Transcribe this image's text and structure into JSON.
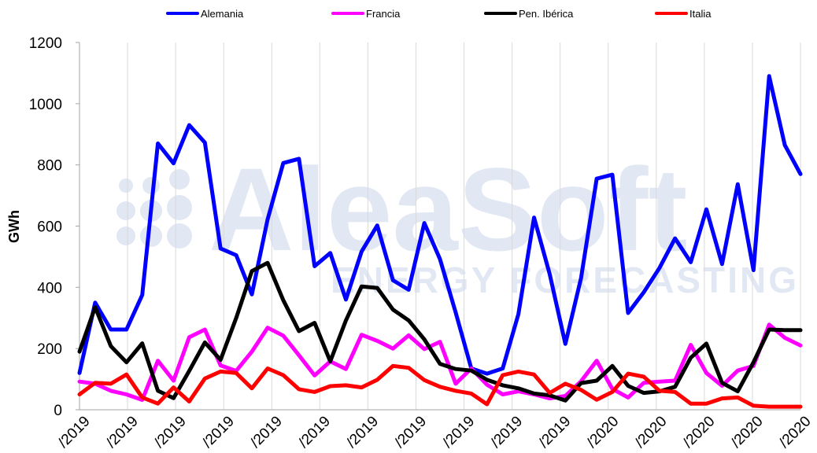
{
  "watermark": {
    "brand": "AleaSoft",
    "tagline": "ENERGY FORECASTING"
  },
  "chart_data": {
    "type": "line",
    "title": "",
    "xlabel": "",
    "ylabel": "GWh",
    "ylim": [
      0,
      1200
    ],
    "yticks": [
      0,
      200,
      400,
      600,
      800,
      1000,
      1200
    ],
    "xtick_labels": [
      "/2019",
      "/2019",
      "/2019",
      "/2019",
      "/2019",
      "/2019",
      "/2019",
      "/2019",
      "/2019",
      "/2019",
      "/2019",
      "/2020",
      "/2020",
      "/2020",
      "/2020",
      "/2020"
    ],
    "grid": "vertical",
    "legend_position": "top",
    "series": [
      {
        "name": "Alemania",
        "color": "#0000ff",
        "values": [
          120,
          350,
          262,
          262,
          375,
          870,
          805,
          930,
          873,
          527,
          505,
          377,
          622,
          806,
          820,
          469,
          512,
          360,
          517,
          602,
          423,
          392,
          610,
          492,
          318,
          135,
          118,
          135,
          312,
          628,
          443,
          215,
          430,
          755,
          768,
          316,
          384,
          463,
          560,
          482,
          655,
          476,
          737,
          456,
          1090,
          865,
          770
        ]
      },
      {
        "name": "Francia",
        "color": "#ff00ff",
        "values": [
          92,
          85,
          62,
          50,
          32,
          160,
          95,
          237,
          262,
          145,
          127,
          190,
          268,
          242,
          178,
          112,
          158,
          133,
          245,
          225,
          200,
          243,
          198,
          222,
          85,
          135,
          82,
          50,
          60,
          50,
          37,
          45,
          93,
          160,
          68,
          40,
          88,
          92,
          95,
          212,
          120,
          78,
          128,
          143,
          278,
          235,
          210
        ]
      },
      {
        "name": "Pen. Ibérica",
        "color": "#000000",
        "values": [
          190,
          335,
          208,
          155,
          217,
          62,
          38,
          127,
          220,
          163,
          300,
          453,
          480,
          358,
          257,
          284,
          158,
          292,
          403,
          398,
          327,
          292,
          230,
          150,
          133,
          128,
          98,
          80,
          70,
          53,
          47,
          30,
          87,
          95,
          143,
          78,
          55,
          60,
          75,
          170,
          216,
          88,
          60,
          155,
          262,
          260,
          260
        ]
      },
      {
        "name": "Italia",
        "color": "#ff0000",
        "values": [
          50,
          88,
          85,
          115,
          40,
          20,
          73,
          27,
          102,
          125,
          120,
          70,
          135,
          113,
          67,
          58,
          77,
          80,
          73,
          98,
          143,
          137,
          97,
          75,
          62,
          53,
          18,
          113,
          125,
          115,
          55,
          85,
          65,
          33,
          58,
          118,
          108,
          62,
          58,
          20,
          20,
          37,
          40,
          13,
          10,
          10,
          10
        ]
      }
    ]
  }
}
